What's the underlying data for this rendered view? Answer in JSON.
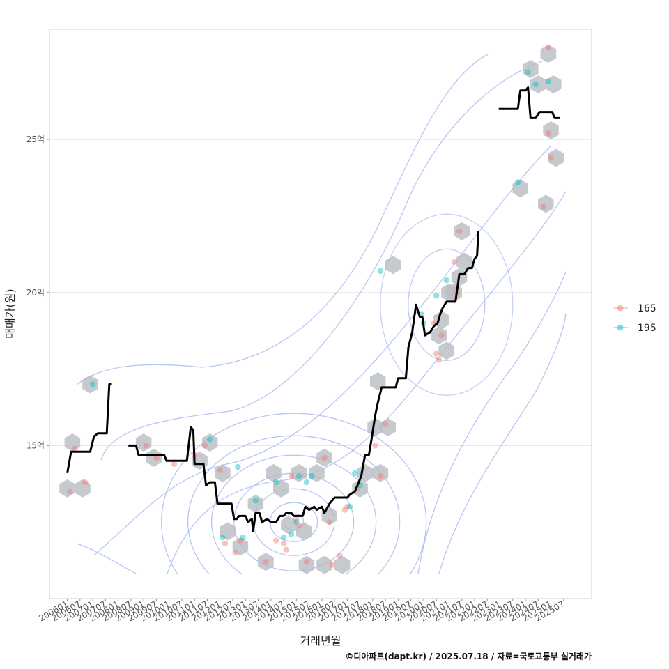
{
  "chart_data": {
    "type": "scatter",
    "xlabel": "거래년월",
    "ylabel": "매매가(원)",
    "caption": "©디아파트(dapt.kr) / 2025.07.18 / 자료=국토교통부 실거래가",
    "x_ticks": [
      "200601",
      "200607",
      "200701",
      "200707",
      "200801",
      "200807",
      "200901",
      "200907",
      "201001",
      "201007",
      "201101",
      "201107",
      "201201",
      "201207",
      "201301",
      "201307",
      "201401",
      "201407",
      "201501",
      "201507",
      "201601",
      "201607",
      "201701",
      "201707",
      "201801",
      "201807",
      "201901",
      "201907",
      "202001",
      "202007",
      "202101",
      "202107",
      "202201",
      "202207",
      "202301",
      "202307",
      "202401",
      "202407",
      "202501",
      "202507"
    ],
    "y_ticks": [
      {
        "value": 15,
        "label": "15억"
      },
      {
        "value": 20,
        "label": "20억"
      },
      {
        "value": 25,
        "label": "25억"
      }
    ],
    "xlim": [
      2005.3,
      2026.6
    ],
    "ylim": [
      10.0,
      28.6
    ],
    "grid": true,
    "legend_position": "right",
    "colors": {
      "165": "#F8766D",
      "195": "#00BFC4",
      "line": "#000000",
      "hex": "#B8BCC2",
      "contour": "#9FB3F0"
    },
    "series": [
      {
        "name": "165",
        "points": [
          [
            2006.1,
            13.5
          ],
          [
            2006.3,
            14.9
          ],
          [
            2006.7,
            13.8
          ],
          [
            2009.1,
            15.0
          ],
          [
            2009.5,
            14.6
          ],
          [
            2010.2,
            14.4
          ],
          [
            2011.0,
            14.7
          ],
          [
            2011.4,
            15.0
          ],
          [
            2012.0,
            14.2
          ],
          [
            2012.2,
            11.8
          ],
          [
            2012.6,
            11.5
          ],
          [
            2012.8,
            11.9
          ],
          [
            2013.8,
            11.2
          ],
          [
            2014.2,
            11.9
          ],
          [
            2014.5,
            11.8
          ],
          [
            2014.6,
            11.6
          ],
          [
            2014.8,
            14.0
          ],
          [
            2015.0,
            12.6
          ],
          [
            2015.1,
            12.4
          ],
          [
            2015.4,
            11.2
          ],
          [
            2016.1,
            14.6
          ],
          [
            2016.3,
            12.5
          ],
          [
            2016.4,
            11.1
          ],
          [
            2016.7,
            11.4
          ],
          [
            2016.9,
            12.9
          ],
          [
            2017.0,
            13.0
          ],
          [
            2017.4,
            13.6
          ],
          [
            2018.1,
            15.0
          ],
          [
            2018.3,
            14.0
          ],
          [
            2018.5,
            15.7
          ],
          [
            2020.4,
            19.0
          ],
          [
            2020.5,
            18.0
          ],
          [
            2020.6,
            17.8
          ],
          [
            2020.7,
            18.6
          ],
          [
            2021.2,
            21.0
          ],
          [
            2021.3,
            20.0
          ],
          [
            2021.4,
            22.0
          ],
          [
            2024.7,
            22.8
          ],
          [
            2024.9,
            28.0
          ],
          [
            2024.9,
            25.2
          ],
          [
            2025.0,
            24.4
          ]
        ]
      },
      {
        "name": "195",
        "points": [
          [
            2007.0,
            17.0
          ],
          [
            2011.6,
            15.2
          ],
          [
            2012.1,
            12.0
          ],
          [
            2012.7,
            14.3
          ],
          [
            2012.9,
            12.0
          ],
          [
            2013.4,
            13.2
          ],
          [
            2014.2,
            13.8
          ],
          [
            2014.5,
            12.0
          ],
          [
            2014.8,
            12.1
          ],
          [
            2015.0,
            12.5
          ],
          [
            2015.1,
            14.0
          ],
          [
            2015.4,
            13.8
          ],
          [
            2015.6,
            14.0
          ],
          [
            2017.1,
            13.0
          ],
          [
            2017.3,
            14.1
          ],
          [
            2017.5,
            13.7
          ],
          [
            2018.3,
            20.7
          ],
          [
            2019.9,
            19.3
          ],
          [
            2020.0,
            19.0
          ],
          [
            2020.5,
            19.9
          ],
          [
            2020.9,
            20.4
          ],
          [
            2023.7,
            23.6
          ],
          [
            2024.1,
            27.2
          ],
          [
            2024.4,
            26.8
          ],
          [
            2024.9,
            26.9
          ]
        ]
      }
    ],
    "hexbins": [
      [
        2006.0,
        13.6
      ],
      [
        2006.2,
        15.1
      ],
      [
        2006.6,
        13.6
      ],
      [
        2006.9,
        17.0
      ],
      [
        2009.0,
        15.1
      ],
      [
        2009.4,
        14.6
      ],
      [
        2011.2,
        14.5
      ],
      [
        2011.6,
        15.1
      ],
      [
        2012.1,
        14.1
      ],
      [
        2012.3,
        12.2
      ],
      [
        2012.8,
        11.7
      ],
      [
        2013.4,
        13.1
      ],
      [
        2013.8,
        11.2
      ],
      [
        2014.1,
        14.1
      ],
      [
        2014.4,
        13.6
      ],
      [
        2014.7,
        12.4
      ],
      [
        2015.1,
        14.1
      ],
      [
        2015.3,
        12.2
      ],
      [
        2015.4,
        11.1
      ],
      [
        2015.8,
        14.1
      ],
      [
        2016.1,
        14.6
      ],
      [
        2016.3,
        12.7
      ],
      [
        2016.1,
        11.1
      ],
      [
        2016.8,
        11.1
      ],
      [
        2017.5,
        13.6
      ],
      [
        2017.7,
        14.1
      ],
      [
        2018.2,
        17.1
      ],
      [
        2018.3,
        14.1
      ],
      [
        2018.1,
        15.6
      ],
      [
        2018.6,
        15.6
      ],
      [
        2018.8,
        20.9
      ],
      [
        2020.6,
        18.6
      ],
      [
        2020.7,
        19.1
      ],
      [
        2020.9,
        18.1
      ],
      [
        2021.0,
        20.0
      ],
      [
        2021.4,
        20.5
      ],
      [
        2021.6,
        21.0
      ],
      [
        2021.5,
        22.0
      ],
      [
        2021.2,
        20.0
      ],
      [
        2023.8,
        23.4
      ],
      [
        2024.2,
        27.3
      ],
      [
        2024.5,
        26.8
      ],
      [
        2024.8,
        22.9
      ],
      [
        2025.0,
        25.3
      ],
      [
        2025.2,
        24.4
      ],
      [
        2025.1,
        26.8
      ],
      [
        2024.9,
        27.8
      ]
    ],
    "median_line": [
      [
        [
          2006.0,
          14.1
        ],
        [
          2006.15,
          14.8
        ],
        [
          2006.9,
          14.8
        ],
        [
          2007.05,
          15.3
        ],
        [
          2007.2,
          15.4
        ],
        [
          2007.55,
          15.4
        ],
        [
          2007.65,
          17.0
        ],
        [
          2007.75,
          17.0
        ]
      ],
      [
        [
          2008.4,
          15.0
        ],
        [
          2008.7,
          15.0
        ],
        [
          2008.8,
          14.7
        ],
        [
          2009.8,
          14.7
        ],
        [
          2009.9,
          14.5
        ],
        [
          2010.7,
          14.5
        ],
        [
          2010.85,
          15.6
        ],
        [
          2010.95,
          15.5
        ],
        [
          2011.0,
          14.4
        ],
        [
          2011.35,
          14.4
        ],
        [
          2011.45,
          13.7
        ],
        [
          2011.6,
          13.8
        ],
        [
          2011.8,
          13.8
        ],
        [
          2011.9,
          13.1
        ],
        [
          2012.45,
          13.1
        ],
        [
          2012.55,
          12.6
        ],
        [
          2012.65,
          12.6
        ],
        [
          2012.75,
          12.7
        ],
        [
          2013.0,
          12.7
        ],
        [
          2013.1,
          12.5
        ],
        [
          2013.25,
          12.6
        ],
        [
          2013.3,
          12.2
        ],
        [
          2013.4,
          12.8
        ],
        [
          2013.55,
          12.8
        ],
        [
          2013.65,
          12.5
        ],
        [
          2013.85,
          12.6
        ],
        [
          2014.0,
          12.5
        ],
        [
          2014.2,
          12.5
        ],
        [
          2014.35,
          12.7
        ],
        [
          2014.5,
          12.7
        ],
        [
          2014.6,
          12.8
        ],
        [
          2014.8,
          12.8
        ],
        [
          2014.9,
          12.7
        ],
        [
          2015.25,
          12.7
        ],
        [
          2015.35,
          13.0
        ],
        [
          2015.5,
          12.9
        ],
        [
          2015.7,
          13.0
        ],
        [
          2015.8,
          12.9
        ],
        [
          2016.0,
          13.0
        ],
        [
          2016.1,
          12.8
        ],
        [
          2016.3,
          13.1
        ],
        [
          2016.5,
          13.3
        ],
        [
          2017.0,
          13.3
        ],
        [
          2017.1,
          13.4
        ],
        [
          2017.3,
          13.5
        ],
        [
          2017.45,
          13.8
        ],
        [
          2017.55,
          14.0
        ],
        [
          2017.7,
          14.7
        ],
        [
          2017.85,
          14.7
        ],
        [
          2017.95,
          15.2
        ],
        [
          2018.1,
          16.0
        ],
        [
          2018.2,
          16.4
        ],
        [
          2018.35,
          16.9
        ],
        [
          2018.9,
          16.9
        ],
        [
          2019.0,
          17.2
        ],
        [
          2019.3,
          17.2
        ],
        [
          2019.4,
          18.2
        ],
        [
          2019.55,
          18.7
        ],
        [
          2019.7,
          19.6
        ],
        [
          2019.85,
          19.2
        ],
        [
          2019.95,
          19.2
        ],
        [
          2020.05,
          18.6
        ],
        [
          2020.25,
          18.7
        ],
        [
          2020.4,
          18.9
        ],
        [
          2020.55,
          19.0
        ],
        [
          2020.65,
          19.3
        ],
        [
          2020.75,
          19.5
        ],
        [
          2020.9,
          19.7
        ],
        [
          2021.25,
          19.7
        ],
        [
          2021.4,
          20.6
        ],
        [
          2021.6,
          20.6
        ],
        [
          2021.75,
          20.8
        ],
        [
          2021.9,
          20.8
        ],
        [
          2022.0,
          21.1
        ],
        [
          2022.1,
          21.2
        ],
        [
          2022.15,
          22.0
        ]
      ],
      [
        [
          2022.95,
          26.0
        ],
        [
          2023.7,
          26.0
        ],
        [
          2023.8,
          26.6
        ],
        [
          2024.0,
          26.6
        ],
        [
          2024.1,
          26.7
        ],
        [
          2024.2,
          25.7
        ],
        [
          2024.4,
          25.7
        ],
        [
          2024.55,
          25.9
        ],
        [
          2025.05,
          25.9
        ],
        [
          2025.15,
          25.7
        ],
        [
          2025.35,
          25.7
        ]
      ]
    ],
    "density_center": [
      2014.9,
      12.5
    ]
  }
}
